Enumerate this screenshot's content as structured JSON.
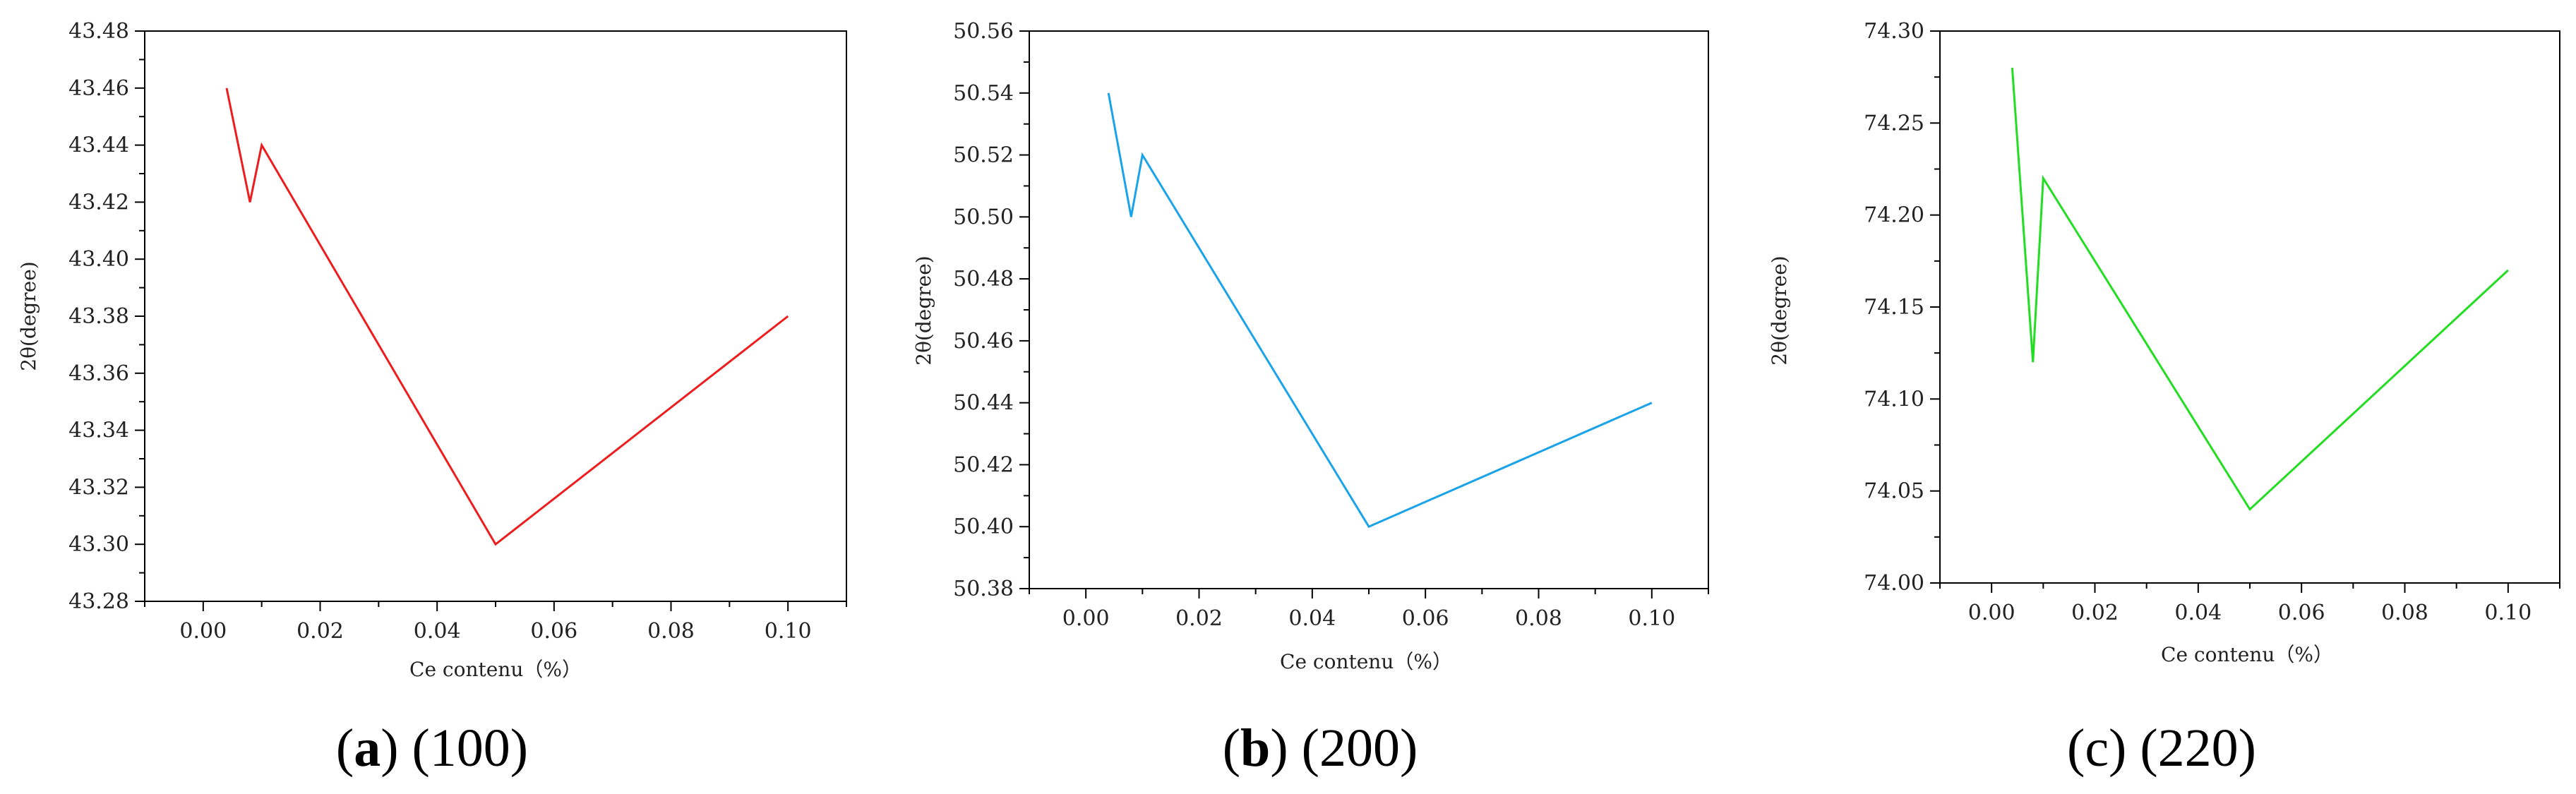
{
  "chart_data": [
    {
      "type": "line",
      "caption": {
        "letter": "a",
        "text": "(100)"
      },
      "xlabel": "Ce contenu（%）",
      "ylabel": "2θ(degree)",
      "xlim": [
        -0.01,
        0.11
      ],
      "ylim": [
        43.28,
        43.48
      ],
      "xticks": [
        "0.00",
        "0.02",
        "0.04",
        "0.06",
        "0.08",
        "0.10"
      ],
      "yticks": [
        "43.28",
        "43.30",
        "43.32",
        "43.34",
        "43.36",
        "43.38",
        "43.40",
        "43.42",
        "43.44",
        "43.46",
        "43.48"
      ],
      "color": "#ee1c1c",
      "series": [
        {
          "x": [
            0.004,
            0.008,
            0.01,
            0.05,
            0.1
          ],
          "values": [
            43.46,
            43.42,
            43.44,
            43.3,
            43.38
          ]
        }
      ]
    },
    {
      "type": "line",
      "caption": {
        "letter": "b",
        "text": "(200)"
      },
      "xlabel": "Ce contenu（%）",
      "ylabel": "2θ(degree)",
      "xlim": [
        -0.01,
        0.11
      ],
      "ylim": [
        50.38,
        50.56
      ],
      "xticks": [
        "0.00",
        "0.02",
        "0.04",
        "0.06",
        "0.08",
        "0.10"
      ],
      "yticks": [
        "50.38",
        "50.40",
        "50.42",
        "50.44",
        "50.46",
        "50.48",
        "50.50",
        "50.52",
        "50.54",
        "50.56"
      ],
      "color": "#1aa3e8",
      "series": [
        {
          "x": [
            0.004,
            0.008,
            0.01,
            0.05,
            0.1
          ],
          "values": [
            50.54,
            50.5,
            50.52,
            50.4,
            50.44
          ]
        }
      ]
    },
    {
      "type": "line",
      "caption": {
        "letter": "",
        "text": "(c) (220)"
      },
      "xlabel": "Ce contenu（%）",
      "ylabel": "2θ(degree)",
      "xlim": [
        -0.01,
        0.11
      ],
      "ylim": [
        74.0,
        74.3
      ],
      "xticks": [
        "0.00",
        "0.02",
        "0.04",
        "0.06",
        "0.08",
        "0.10"
      ],
      "yticks": [
        "74.00",
        "74.05",
        "74.10",
        "74.15",
        "74.20",
        "74.25",
        "74.30"
      ],
      "color": "#22dd22",
      "series": [
        {
          "x": [
            0.004,
            0.008,
            0.01,
            0.05,
            0.1
          ],
          "values": [
            74.28,
            74.12,
            74.22,
            74.04,
            74.17
          ]
        }
      ]
    }
  ]
}
